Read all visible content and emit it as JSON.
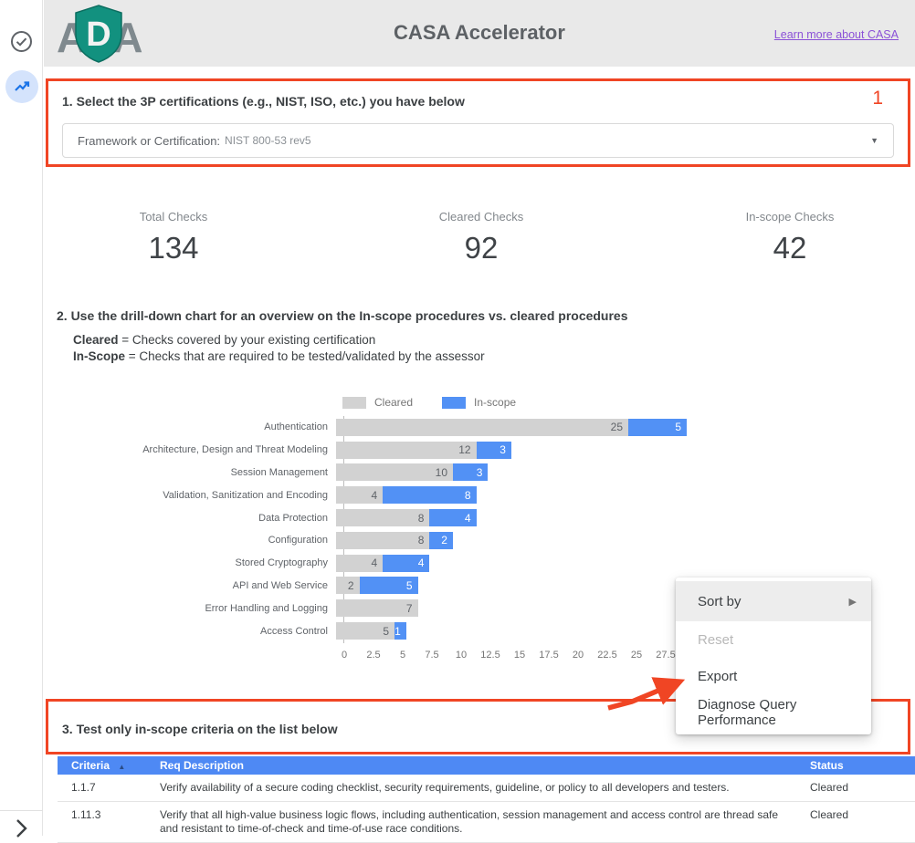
{
  "header": {
    "title": "CASA Accelerator",
    "link_label": "Learn more about CASA",
    "logo": {
      "left": "A",
      "middle": "D",
      "right": "A"
    }
  },
  "step1": {
    "heading": "1. Select the 3P certifications (e.g., NIST, ISO, etc.) you have below",
    "badge": "1",
    "filter_label": "Framework or Certification:",
    "filter_value": "NIST 800-53 rev5",
    "caret": "▼"
  },
  "stats": [
    {
      "label": "Total Checks",
      "value": "134"
    },
    {
      "label": "Cleared Checks",
      "value": "92"
    },
    {
      "label": "In-scope Checks",
      "value": "42"
    }
  ],
  "step2": {
    "heading": "2. Use the drill-down chart for an overview on the In-scope procedures vs. cleared procedures",
    "def1_term": "Cleared",
    "def1_rest": " = Checks covered by your existing certification",
    "def2_term": "In-Scope",
    "def2_rest": " = Checks that are required to be tested/validated by the assessor"
  },
  "chart_data": {
    "type": "bar",
    "orientation": "horizontal",
    "stacked": true,
    "legend_position": "top",
    "categories": [
      "Authentication",
      "Architecture, Design and Threat Modeling",
      "Session Management",
      "Validation, Sanitization and Encoding",
      "Data Protection",
      "Configuration",
      "Stored Cryptography",
      "API and Web Service",
      "Error Handling and Logging",
      "Access Control"
    ],
    "series": [
      {
        "name": "Cleared",
        "color": "#d2d2d2",
        "values": [
          25,
          12,
          10,
          4,
          8,
          8,
          4,
          2,
          7,
          5
        ]
      },
      {
        "name": "In-scope",
        "color": "#5291f5",
        "values": [
          5,
          3,
          3,
          8,
          4,
          2,
          4,
          5,
          0,
          1
        ]
      }
    ],
    "x_ticks": [
      "0",
      "2.5",
      "5",
      "7.5",
      "10",
      "12.5",
      "15",
      "17.5",
      "20",
      "22.5",
      "25",
      "27.5"
    ],
    "xlim": [
      0,
      27.5
    ],
    "grid": false
  },
  "context_menu": {
    "items": [
      {
        "label": "Sort by",
        "has_submenu": true,
        "highlighted": true,
        "submenu_arrow": "▶"
      },
      {
        "label": "Reset",
        "disabled": true
      },
      {
        "label": "Export"
      },
      {
        "label": "Diagnose Query Performance"
      }
    ]
  },
  "step3": {
    "heading": "3. Test only in-scope criteria on the list below"
  },
  "table": {
    "columns": {
      "c1": "Criteria",
      "c2": "Req Description",
      "c3": "Status",
      "sort_arrow": "▲"
    },
    "rows": [
      {
        "criteria": "1.1.7",
        "description": "Verify availability of a secure coding checklist, security requirements, guideline, or policy to all developers and testers.",
        "status": "Cleared"
      },
      {
        "criteria": "1.11.3",
        "description": "Verify that all high-value business logic flows, including authentication, session management and access control are thread safe and resistant to time-of-check and time-of-use race conditions.",
        "status": "Cleared"
      }
    ]
  },
  "colors": {
    "accent_red": "#f04524",
    "bar_cleared": "#d2d2d2",
    "bar_inscope": "#5291f5",
    "table_header_blue": "#4e89f4",
    "link_purple": "#8b51d7",
    "header_gray": "#e9e9e9"
  }
}
